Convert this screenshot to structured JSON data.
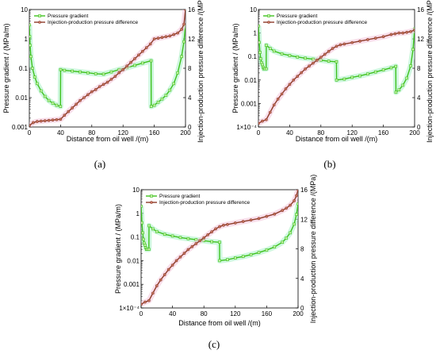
{
  "colors": {
    "gradient": "#3ec21e",
    "gradient_marker": "#c8f0a8",
    "pressure_diff": "#8e3c2a",
    "pressure_diff_marker": "#c87864",
    "halo_gradient": "#a8f0c4",
    "halo_pressure": "#f2c2d8"
  },
  "chart_data": [
    {
      "panel": "(a)",
      "type": "line",
      "xlabel": "Distance from oil well /(m)",
      "ylabel": "Pressure gradient / (MPa/m)",
      "y2label": "Injection-production pressure difference /(MPa)",
      "xlim": [
        0,
        200
      ],
      "xticks": [
        "0",
        "40",
        "80",
        "120",
        "160",
        "200"
      ],
      "ylim_log": [
        0.001,
        10
      ],
      "yticks": [
        "0.001",
        "0.01",
        "0.1",
        "1",
        "10"
      ],
      "y2lim": [
        0,
        16
      ],
      "y2ticks": [
        "0",
        "4",
        "8",
        "12",
        "16"
      ],
      "legend": [
        "Pressure gradient",
        "Injection-production pressure difference"
      ],
      "legend_position": "top-left",
      "series": [
        {
          "name": "Pressure gradient",
          "axis": "left-log",
          "x": [
            0,
            0.5,
            1,
            2,
            4,
            7,
            10,
            15,
            20,
            25,
            30,
            35,
            39.9,
            40.1,
            45,
            55,
            65,
            75,
            85,
            95,
            105,
            115,
            125,
            135,
            145,
            155.9,
            156.1,
            160,
            165,
            170,
            175,
            180,
            185,
            190,
            195,
            198,
            200
          ],
          "y": [
            3,
            1.2,
            0.6,
            0.25,
            0.1,
            0.05,
            0.03,
            0.017,
            0.011,
            0.008,
            0.0065,
            0.0055,
            0.005,
            0.09,
            0.085,
            0.08,
            0.075,
            0.07,
            0.065,
            0.063,
            0.075,
            0.09,
            0.105,
            0.125,
            0.15,
            0.18,
            0.005,
            0.0055,
            0.007,
            0.009,
            0.012,
            0.018,
            0.03,
            0.07,
            0.25,
            0.8,
            3
          ]
        },
        {
          "name": "Injection-production pressure difference",
          "axis": "right-linear",
          "x": [
            0,
            5,
            10,
            15,
            20,
            25,
            30,
            35,
            40,
            45,
            50,
            55,
            60,
            65,
            70,
            75,
            80,
            85,
            90,
            95,
            100,
            105,
            110,
            115,
            120,
            125,
            130,
            135,
            140,
            145,
            150,
            155,
            160,
            165,
            170,
            175,
            180,
            185,
            190,
            195,
            198,
            200
          ],
          "y": [
            0.2,
            0.6,
            0.75,
            0.8,
            0.85,
            0.9,
            0.95,
            1.0,
            1.05,
            1.6,
            2.1,
            2.6,
            3.1,
            3.6,
            4.0,
            4.4,
            4.8,
            5.1,
            5.5,
            5.8,
            6.1,
            6.5,
            6.9,
            7.4,
            7.8,
            8.3,
            8.8,
            9.3,
            9.8,
            10.3,
            10.8,
            11.3,
            12.0,
            12.1,
            12.2,
            12.3,
            12.4,
            12.6,
            12.8,
            13.3,
            14.0,
            16.0
          ]
        }
      ]
    },
    {
      "panel": "(b)",
      "type": "line",
      "xlabel": "Distance from oil well /(m)",
      "ylabel": "Pressure gradient / (MPa/m)",
      "y2label": "Injection-production pressure difference /(MPa)",
      "xlim": [
        0,
        200
      ],
      "xticks": [
        "0",
        "40",
        "80",
        "120",
        "160",
        "200"
      ],
      "ylim_log": [
        0.0001,
        10
      ],
      "yticks": [
        "1×10⁻⁴",
        "0.001",
        "0.01",
        "0.1",
        "1",
        "10"
      ],
      "y2lim": [
        0,
        16
      ],
      "y2ticks": [
        "0",
        "4",
        "8",
        "12",
        "16"
      ],
      "legend": [
        "Pressure gradient",
        "Injection-production pressure difference"
      ],
      "legend_position": "top-left",
      "series": [
        {
          "name": "Pressure gradient",
          "axis": "left-log",
          "x": [
            0,
            1,
            2,
            3,
            4,
            5,
            6,
            7,
            8,
            9.9,
            10.1,
            15,
            20,
            30,
            40,
            50,
            60,
            70,
            80,
            90,
            99.9,
            100.1,
            110,
            120,
            130,
            140,
            150,
            160,
            170,
            175.9,
            176.1,
            180,
            185,
            190,
            195,
            198,
            200
          ],
          "y": [
            2,
            0.4,
            0.15,
            0.08,
            0.055,
            0.045,
            0.035,
            0.03,
            0.03,
            0.03,
            0.3,
            0.22,
            0.17,
            0.13,
            0.11,
            0.095,
            0.085,
            0.077,
            0.07,
            0.063,
            0.06,
            0.01,
            0.011,
            0.013,
            0.015,
            0.018,
            0.022,
            0.027,
            0.033,
            0.038,
            0.003,
            0.0038,
            0.006,
            0.012,
            0.04,
            0.2,
            1.5
          ]
        },
        {
          "name": "Injection-production pressure difference",
          "axis": "right-linear",
          "x": [
            0,
            5,
            10,
            15,
            20,
            25,
            30,
            35,
            40,
            45,
            50,
            55,
            60,
            65,
            70,
            75,
            80,
            85,
            90,
            95,
            100,
            105,
            110,
            120,
            130,
            140,
            150,
            160,
            170,
            175,
            180,
            185,
            190,
            195,
            200
          ],
          "y": [
            0.5,
            0.8,
            1.0,
            2.0,
            3.0,
            3.8,
            4.5,
            5.2,
            5.8,
            6.4,
            6.9,
            7.4,
            7.9,
            8.3,
            8.7,
            9.1,
            9.5,
            9.9,
            10.3,
            10.7,
            11.0,
            11.2,
            11.3,
            11.5,
            11.7,
            11.9,
            12.1,
            12.3,
            12.6,
            12.7,
            12.8,
            12.8,
            12.9,
            13.0,
            13.2
          ]
        }
      ]
    },
    {
      "panel": "(c)",
      "type": "line",
      "xlabel": "Distance from oil well /(m)",
      "ylabel": "Pressure gradient / (MPa/m)",
      "y2label": "Injection-production pressure difference /(MPa)",
      "xlim": [
        0,
        200
      ],
      "xticks": [
        "0",
        "40",
        "80",
        "120",
        "160",
        "200"
      ],
      "ylim_log": [
        0.0001,
        10
      ],
      "yticks": [
        "1×10⁻⁴",
        "0.001",
        "0.01",
        "0.1",
        "1",
        "10"
      ],
      "y2lim": [
        0,
        16
      ],
      "y2ticks": [
        "0",
        "4",
        "8",
        "12",
        "16"
      ],
      "legend": [
        "Pressure gradient",
        "Injection-production pressure difference"
      ],
      "legend_position": "top-left",
      "series": [
        {
          "name": "Pressure gradient",
          "axis": "left-log",
          "x": [
            0,
            1,
            2,
            3,
            4,
            5,
            6,
            7,
            8,
            9.9,
            10.1,
            15,
            20,
            30,
            40,
            50,
            60,
            70,
            80,
            90,
            99.9,
            100.1,
            110,
            120,
            130,
            140,
            150,
            160,
            170,
            180,
            185,
            190,
            195,
            198,
            200
          ],
          "y": [
            2,
            0.4,
            0.15,
            0.08,
            0.055,
            0.045,
            0.035,
            0.03,
            0.03,
            0.03,
            0.3,
            0.22,
            0.17,
            0.13,
            0.11,
            0.095,
            0.085,
            0.077,
            0.07,
            0.063,
            0.06,
            0.01,
            0.011,
            0.013,
            0.015,
            0.018,
            0.022,
            0.028,
            0.038,
            0.06,
            0.09,
            0.15,
            0.35,
            0.9,
            2.5
          ]
        },
        {
          "name": "Injection-production pressure difference",
          "axis": "right-linear",
          "x": [
            0,
            5,
            10,
            15,
            20,
            25,
            30,
            35,
            40,
            45,
            50,
            55,
            60,
            65,
            70,
            75,
            80,
            85,
            90,
            95,
            100,
            105,
            110,
            120,
            130,
            140,
            150,
            160,
            170,
            180,
            185,
            190,
            195,
            198,
            200
          ],
          "y": [
            0.5,
            0.8,
            1.0,
            2.0,
            3.0,
            3.8,
            4.5,
            5.2,
            5.8,
            6.4,
            6.9,
            7.4,
            7.9,
            8.3,
            8.7,
            9.1,
            9.5,
            9.9,
            10.3,
            10.7,
            11.0,
            11.2,
            11.3,
            11.5,
            11.7,
            11.9,
            12.1,
            12.4,
            12.7,
            13.2,
            13.5,
            13.9,
            14.5,
            15.2,
            16.0
          ]
        }
      ]
    }
  ]
}
